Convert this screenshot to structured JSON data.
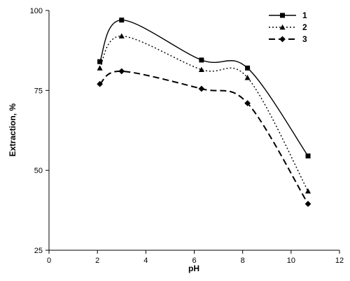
{
  "chart_data": {
    "type": "line",
    "title": "",
    "xlabel": "pH",
    "ylabel": "Extraction, %",
    "xlim": [
      0,
      12
    ],
    "ylim": [
      25,
      100
    ],
    "xticks": [
      0,
      2,
      4,
      6,
      8,
      10,
      12
    ],
    "yticks": [
      25,
      50,
      75,
      100
    ],
    "grid": false,
    "legend_position": "top-right",
    "series": [
      {
        "name": "1",
        "style": "solid",
        "marker": "square",
        "x": [
          2.1,
          3.0,
          6.3,
          8.2,
          10.7
        ],
        "y": [
          84,
          97,
          84.5,
          82,
          54.5
        ]
      },
      {
        "name": "2",
        "style": "dotted",
        "marker": "triangle",
        "x": [
          2.1,
          3.0,
          6.3,
          8.2,
          10.7
        ],
        "y": [
          82,
          92,
          81.5,
          79,
          43.5
        ]
      },
      {
        "name": "3",
        "style": "dashed",
        "marker": "diamond",
        "x": [
          2.1,
          3.0,
          6.3,
          8.2,
          10.7
        ],
        "y": [
          77,
          81,
          75.5,
          71,
          39.5
        ]
      }
    ],
    "colors": {
      "line": "#000000",
      "axis": "#000000"
    }
  }
}
